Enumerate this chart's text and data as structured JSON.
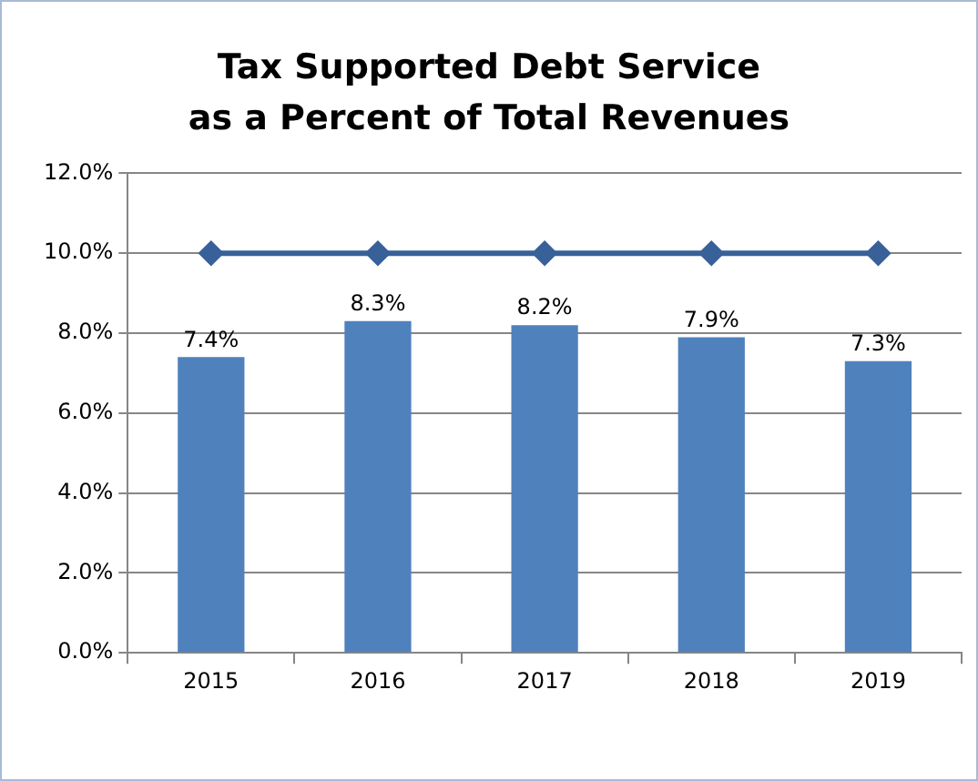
{
  "chart_data": {
    "type": "bar",
    "title": "Tax Supported Debt Service\nas a Percent of Total Revenues",
    "categories": [
      "2015",
      "2016",
      "2017",
      "2018",
      "2019"
    ],
    "series": [
      {
        "color": "#4f81bd",
        "values": [
          7.4,
          8.3,
          8.2,
          7.9,
          7.3
        ],
        "value_labels": [
          "7.4%",
          "8.3%",
          "8.2%",
          "7.9%",
          "7.3%"
        ]
      },
      {
        "type": "line",
        "color": "#386099",
        "values": [
          10,
          10,
          10,
          10,
          10
        ],
        "marker": "diamond"
      }
    ],
    "ylim": [
      0,
      12
    ],
    "yticks": [
      {
        "value": 0,
        "label": "0.0%"
      },
      {
        "value": 2,
        "label": "2.0%"
      },
      {
        "value": 4,
        "label": "4.0%"
      },
      {
        "value": 6,
        "label": "6.0%"
      },
      {
        "value": 8,
        "label": "8.0%"
      },
      {
        "value": 10,
        "label": "10.0%"
      },
      {
        "value": 12,
        "label": "12.0%"
      }
    ],
    "grid": "y",
    "legend": false
  }
}
